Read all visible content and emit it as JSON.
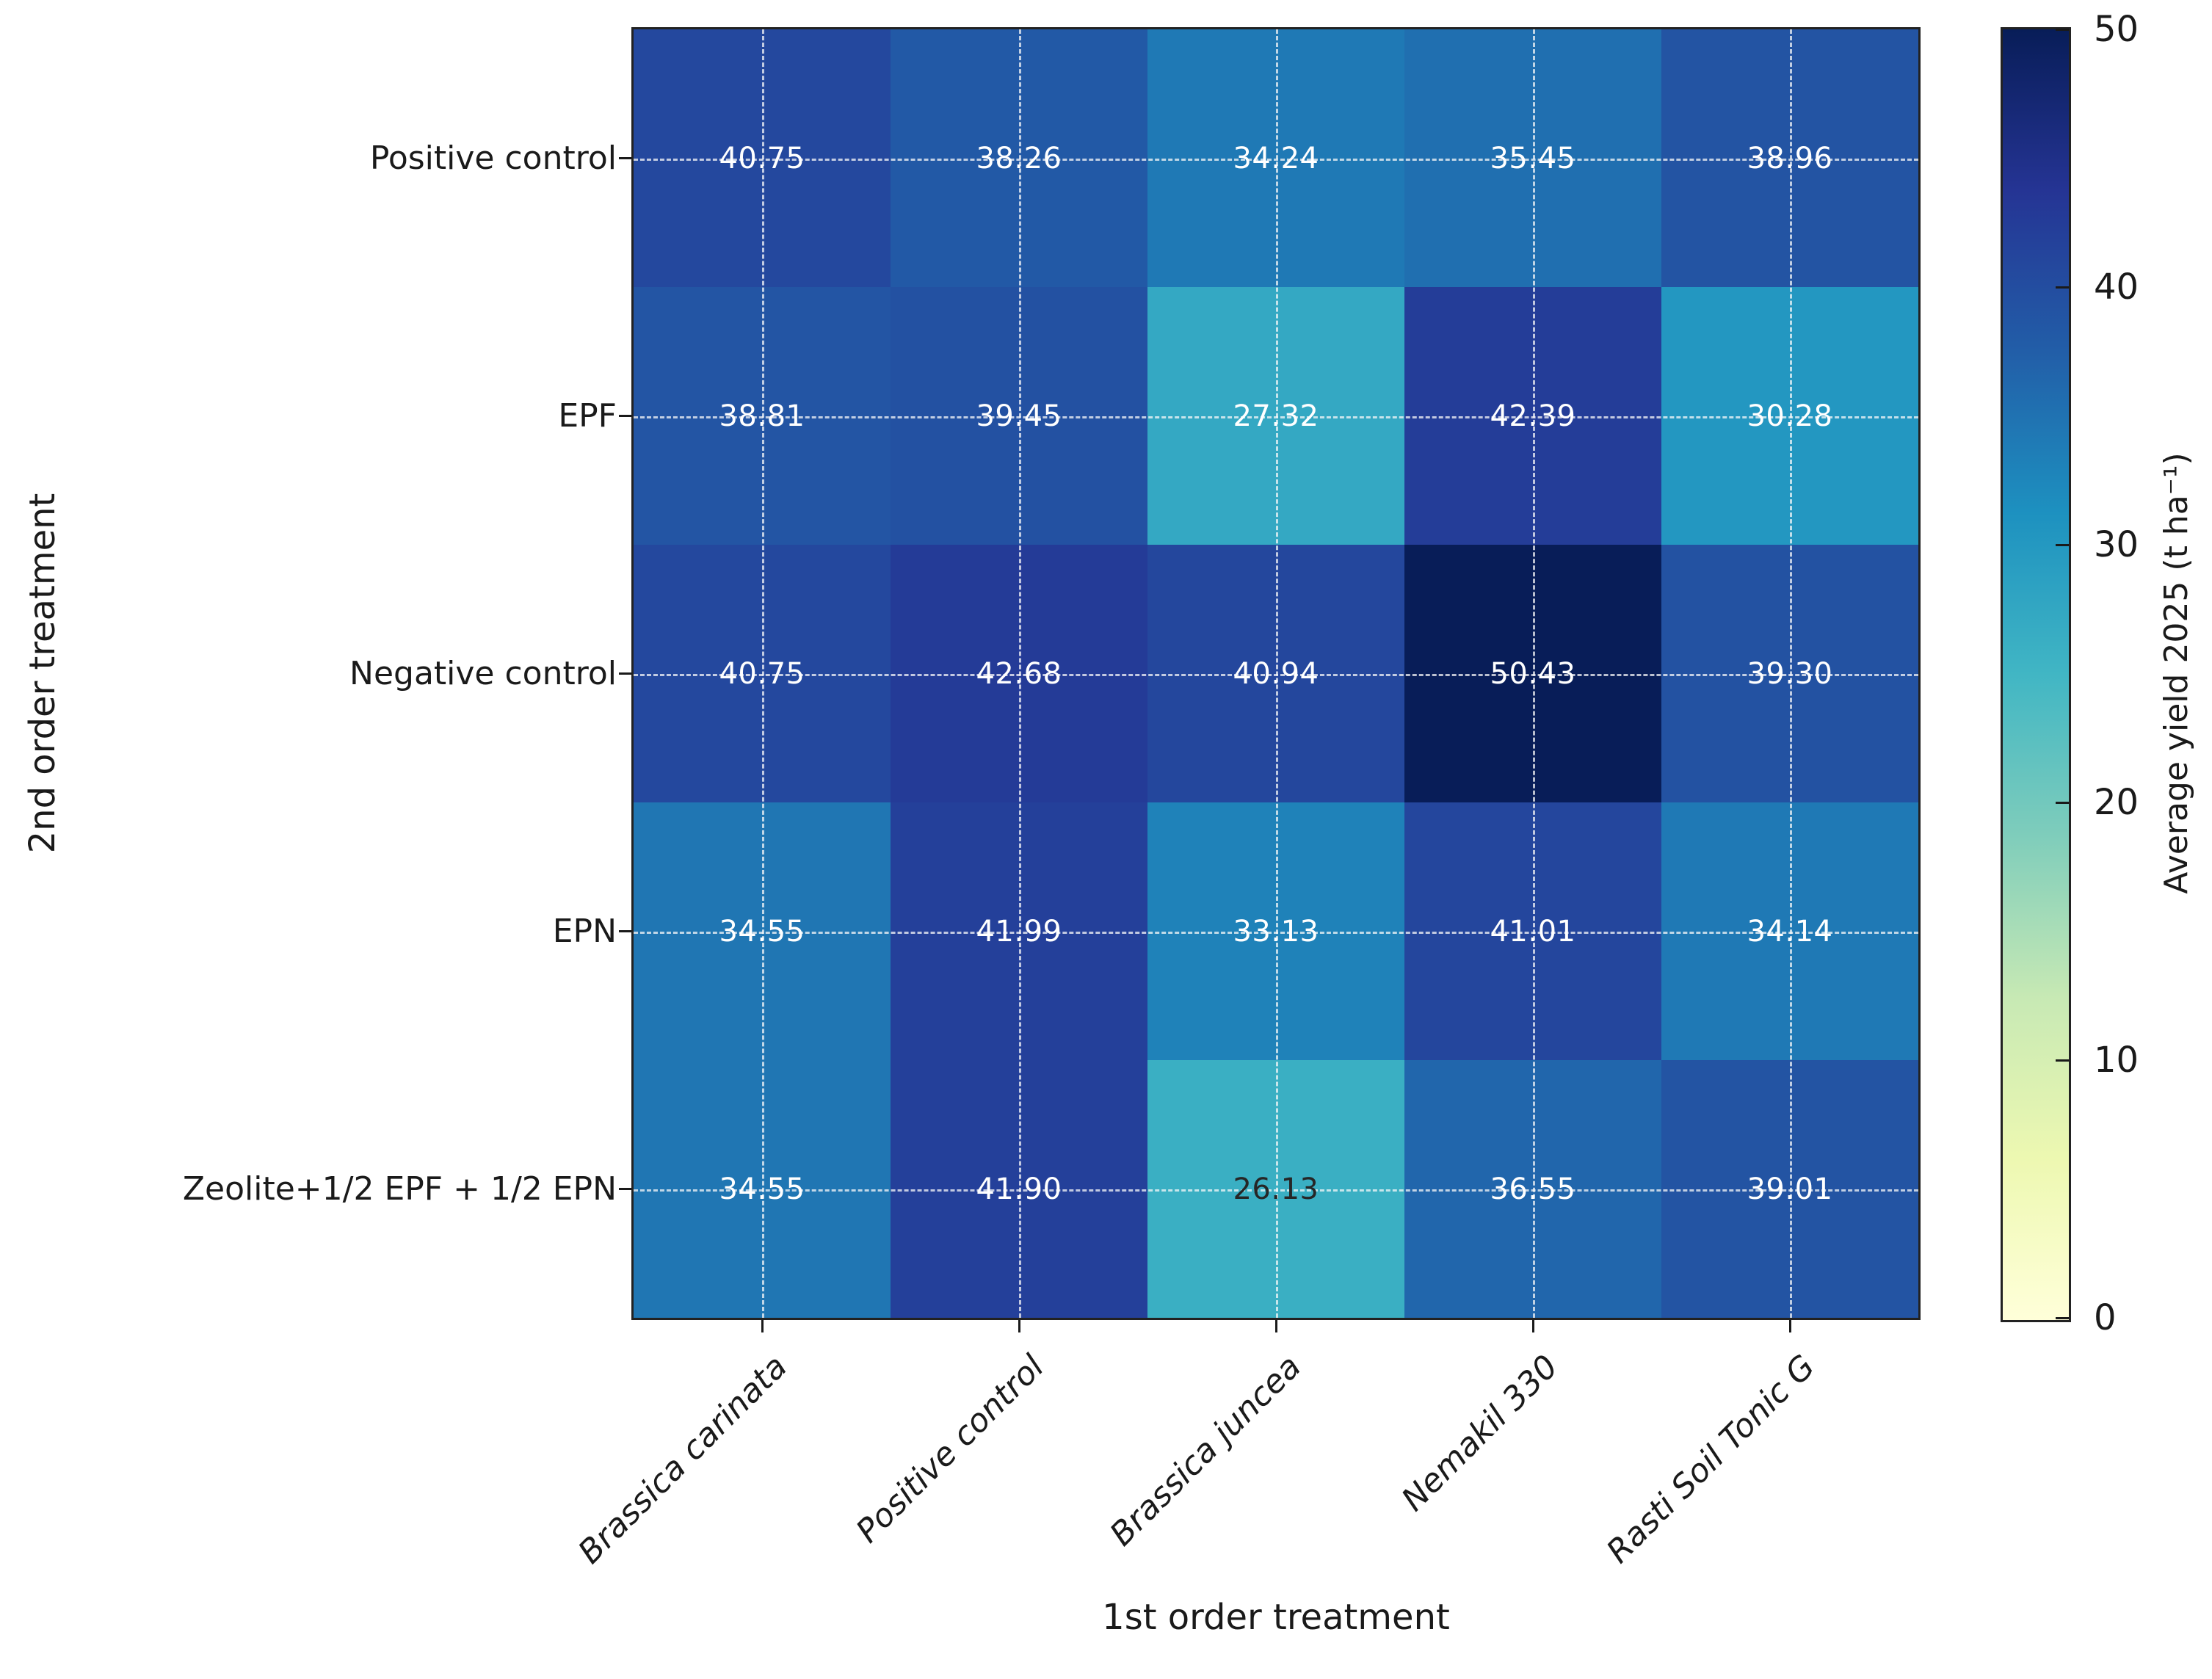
{
  "figure": {
    "background": "#ffffff",
    "border_color": "#222222",
    "gridline_style": "dashed white lines through cell centers",
    "tick_color": "#1a1a1a"
  },
  "chart_data": {
    "type": "heatmap",
    "title": "",
    "xlabel": "1st order treatment",
    "ylabel": "2nd order treatment",
    "x_categories": [
      "Brassica carinata",
      "Positive control",
      "Brassica juncea",
      "Nemakil 330",
      "Rasti Soil Tonic G"
    ],
    "y_categories": [
      "Positive control",
      "EPF",
      "Negative control",
      "EPN",
      "Zeolite+1/2 EPF + 1/2 EPN"
    ],
    "values": [
      [
        40.75,
        38.26,
        34.24,
        35.45,
        38.96
      ],
      [
        38.81,
        39.45,
        27.32,
        42.39,
        30.28
      ],
      [
        40.75,
        42.68,
        40.94,
        50.43,
        39.3
      ],
      [
        34.55,
        41.99,
        33.13,
        41.01,
        34.14
      ],
      [
        34.55,
        41.9,
        26.13,
        36.55,
        39.01
      ]
    ],
    "value_decimals": 2,
    "vmin": 0,
    "vmax": 50,
    "grid": "on",
    "legend_position": "right-colorbar",
    "colorbar": {
      "label": "Average yield 2025 (t ha⁻¹)",
      "ticks": [
        50,
        40,
        30,
        20,
        10,
        0
      ],
      "colormap": "YlGnBu",
      "stops": [
        "#ffffd9",
        "#edf8b1",
        "#c7e9b4",
        "#7fcdbb",
        "#41b6c4",
        "#1d91c0",
        "#225ea8",
        "#253494",
        "#081d58"
      ]
    },
    "annotation_colors": {
      "light": "#ffffff",
      "dark": "#262626"
    }
  }
}
